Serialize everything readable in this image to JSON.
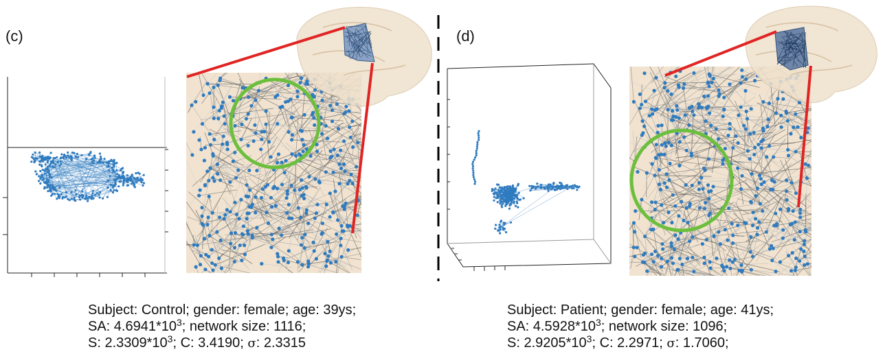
{
  "panels": [
    {
      "label": "(c)",
      "caption": {
        "line1": "Subject: Control; gender: female; age: 39ys;",
        "sa_prefix": "SA: 4.6941*10",
        "sa_exp": "3",
        "sa_suffix": ";  network size: 1116;",
        "s_prefix": "S: 2.3309*10",
        "s_exp": "3",
        "c_text": "; C: 3.4190; ",
        "sigma_symbol": "σ",
        "sigma_text": ": 2.3315"
      }
    },
    {
      "label": "(d)",
      "caption": {
        "line1": "Subject: Patient; gender: female; age: 41ys;",
        "sa_prefix": "SA: 4.5928*10",
        "sa_exp": "3",
        "sa_suffix": ";  network size: 1096;",
        "s_prefix": "S: 2.9205*10",
        "s_exp": "3",
        "c_text": "; C: 2.2971; ",
        "sigma_symbol": "σ",
        "sigma_text": ": 1.7060;"
      }
    }
  ],
  "colors": {
    "node": "#2f7bbf",
    "highlight_circle": "#6cbf3c",
    "zoom_lines": "#e02424",
    "brain_background": "#f1e3cf",
    "divider": "#000000"
  }
}
